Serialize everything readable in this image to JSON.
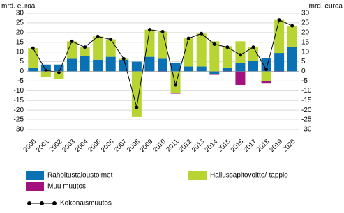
{
  "chart_data": {
    "type": "stacked-bar-line",
    "y_label": "mrd. euroa",
    "y2_label": "mrd. euroa",
    "categories": [
      "2000",
      "2001",
      "2002",
      "2003",
      "2004",
      "2005",
      "2006",
      "2007",
      "2008",
      "2009",
      "2010",
      "2011",
      "2012",
      "2013",
      "2014",
      "2015",
      "2016",
      "2017",
      "2018",
      "2019",
      "2020"
    ],
    "series": [
      {
        "name": "Rahoitustaloustoimet",
        "color": "#0a72b4",
        "values": [
          2,
          3.5,
          3.5,
          6.5,
          8,
          6,
          7.5,
          6,
          5,
          7.5,
          6.5,
          4.5,
          2.5,
          2.5,
          -1.5,
          2,
          4.5,
          5.5,
          7,
          9.5,
          12.5
        ]
      },
      {
        "name": "Hallussapitovoitto/-tappio",
        "color": "#b8d432",
        "values": [
          10,
          -3,
          -4,
          9,
          4.5,
          12,
          9,
          0.5,
          -23.5,
          14,
          14,
          -11,
          14.5,
          17,
          15.5,
          11,
          11,
          7,
          -5,
          17,
          11
        ]
      },
      {
        "name": "Muu muutos",
        "color": "#a3117e",
        "values": [
          0,
          0,
          0,
          0,
          0,
          0,
          0,
          0,
          0,
          0,
          -0.5,
          -0.5,
          0,
          0,
          -0.3,
          -0.5,
          -7,
          0,
          -1,
          -0.5,
          0
        ]
      },
      {
        "name": "Kokonaismuutos",
        "color": "#000000",
        "line": true,
        "values": [
          12,
          0.5,
          -0.5,
          15.5,
          12.5,
          18,
          16.5,
          6.5,
          -18.5,
          21.5,
          20.5,
          -7,
          17,
          19.5,
          14,
          12.5,
          8.5,
          12.5,
          1,
          26.5,
          23.5
        ]
      }
    ],
    "ylim": [
      -30,
      30
    ],
    "yticks": [
      -30,
      -25,
      -20,
      -15,
      -10,
      -5,
      0,
      5,
      10,
      15,
      20,
      25,
      30
    ],
    "y2lim": [
      -30,
      30
    ],
    "y2ticks": [
      -30,
      -25,
      -20,
      -15,
      -10,
      -5,
      0,
      5,
      10,
      15,
      20,
      25,
      30
    ],
    "grid": true
  }
}
